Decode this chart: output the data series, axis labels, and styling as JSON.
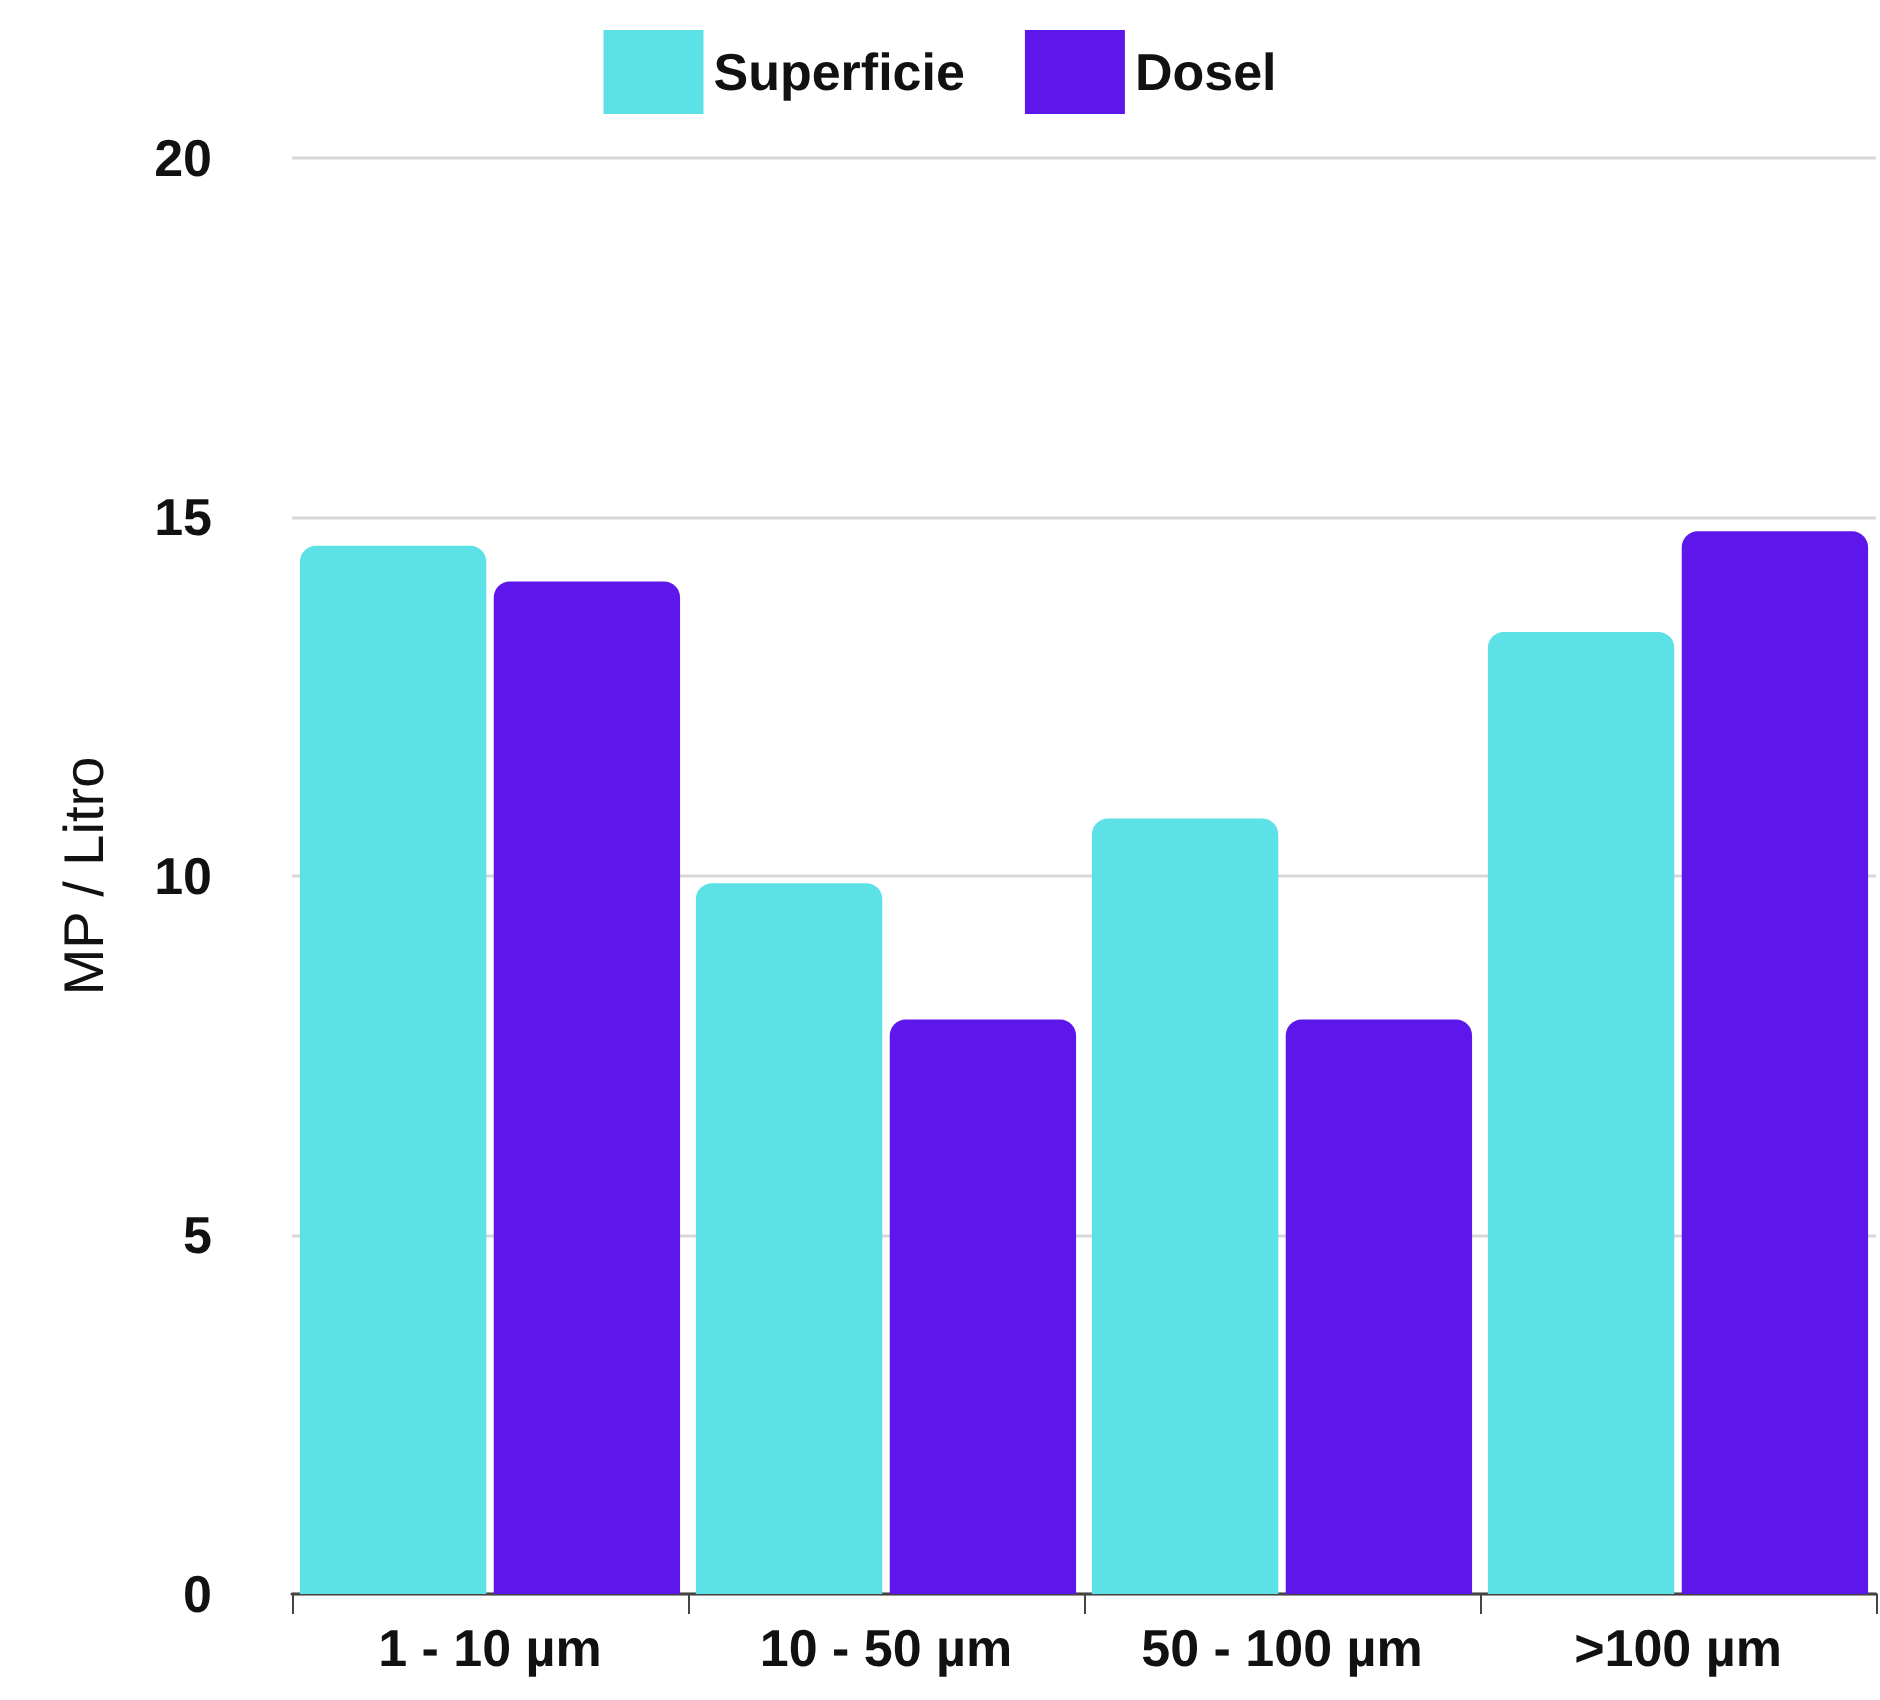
{
  "chart_data": {
    "type": "bar",
    "ylabel": "MP / Litro",
    "categories": [
      "1 - 10 µm",
      "10 - 50 µm",
      "50 - 100 µm",
      ">100 µm"
    ],
    "series": [
      {
        "name": "Superficie",
        "color": "#5ce1e6",
        "values": [
          14.6,
          9.9,
          10.8,
          13.4
        ]
      },
      {
        "name": "Dosel",
        "color": "#5e17eb",
        "values": [
          14.1,
          8.0,
          8.0,
          14.8
        ]
      }
    ],
    "ylim": [
      0,
      20
    ],
    "yticks": [
      0,
      5,
      10,
      15,
      20
    ],
    "grid": "y",
    "legend": "top"
  }
}
